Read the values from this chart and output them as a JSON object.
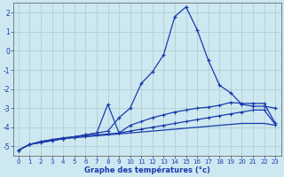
{
  "xlabel": "Graphe des températures (°c)",
  "x": [
    0,
    1,
    2,
    3,
    4,
    5,
    6,
    7,
    8,
    9,
    10,
    11,
    12,
    13,
    14,
    15,
    16,
    17,
    18,
    19,
    20,
    21,
    22,
    23
  ],
  "line1": [
    -5.2,
    -4.9,
    -4.8,
    -4.7,
    -4.6,
    -4.55,
    -4.5,
    -4.45,
    -4.4,
    -4.35,
    -4.3,
    -4.25,
    -4.2,
    -4.15,
    -4.1,
    -4.05,
    -4.0,
    -3.95,
    -3.9,
    -3.85,
    -3.8,
    -3.8,
    -3.8,
    -3.9
  ],
  "line2": [
    -5.2,
    -4.9,
    -4.75,
    -4.65,
    -4.55,
    -4.5,
    -4.45,
    -4.4,
    -4.35,
    -4.3,
    -4.2,
    -4.1,
    -4.0,
    -3.9,
    -3.8,
    -3.7,
    -3.6,
    -3.5,
    -3.4,
    -3.3,
    -3.2,
    -3.1,
    -3.1,
    -3.85
  ],
  "line3": [
    -5.2,
    -4.9,
    -4.75,
    -4.65,
    -4.6,
    -4.5,
    -4.4,
    -4.3,
    -2.8,
    -4.3,
    -3.9,
    -3.7,
    -3.5,
    -3.35,
    -3.2,
    -3.1,
    -3.0,
    -2.95,
    -2.85,
    -2.7,
    -2.75,
    -2.75,
    -2.75,
    -3.8
  ],
  "line4": [
    -5.2,
    -4.9,
    -4.8,
    -4.7,
    -4.6,
    -4.5,
    -4.4,
    -4.3,
    -4.2,
    -3.5,
    -3.0,
    -1.7,
    -1.1,
    -0.2,
    1.8,
    2.3,
    1.1,
    -0.5,
    -1.8,
    -2.2,
    -2.8,
    -2.9,
    -2.9,
    -3.0
  ],
  "line_color": "#1a3aab",
  "bg_color": "#cde8f0",
  "grid_color": "#aacccc",
  "ylim": [
    -5.5,
    2.5
  ],
  "yticks": [
    -5,
    -4,
    -3,
    -2,
    -1,
    0,
    1,
    2
  ],
  "label_color": "#1a3aab",
  "tick_color": "#1a3aab"
}
